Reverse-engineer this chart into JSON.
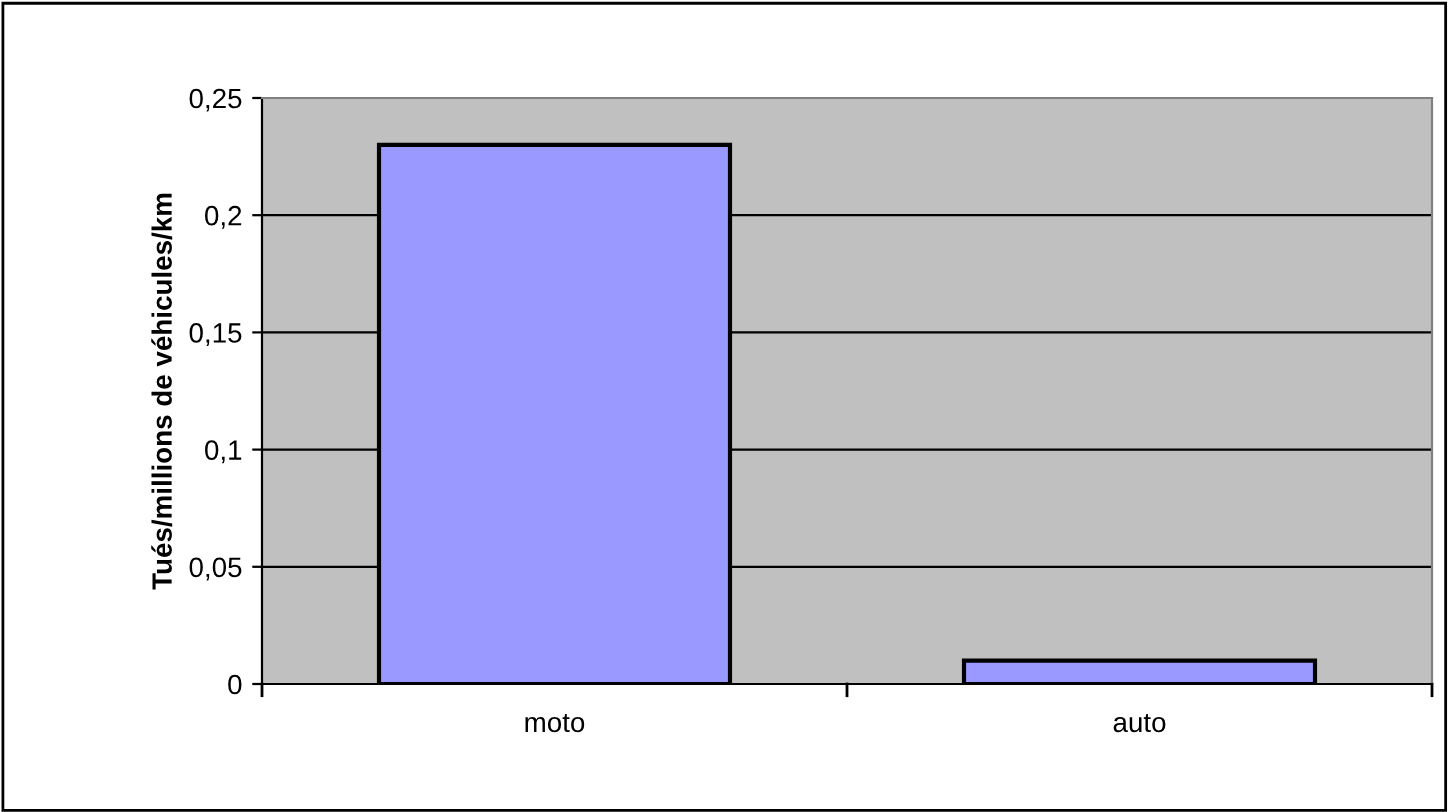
{
  "chart_data": {
    "type": "bar",
    "ylabel": "Tués/millions de véhicules/km",
    "categories": [
      "moto",
      "auto"
    ],
    "values": [
      0.23,
      0.01
    ],
    "color": "#9999ff",
    "ylim": [
      0,
      0.25
    ],
    "yticks": [
      0,
      {
        "value": 0.05,
        "label": "0,05"
      },
      {
        "value": 0.1,
        "label": "0,1"
      },
      {
        "value": 0.15,
        "label": "0,15"
      },
      {
        "value": 0.2,
        "label": "0,2"
      },
      {
        "value": 0.25,
        "label": "0,25"
      }
    ],
    "grid": "y",
    "legend": false
  }
}
